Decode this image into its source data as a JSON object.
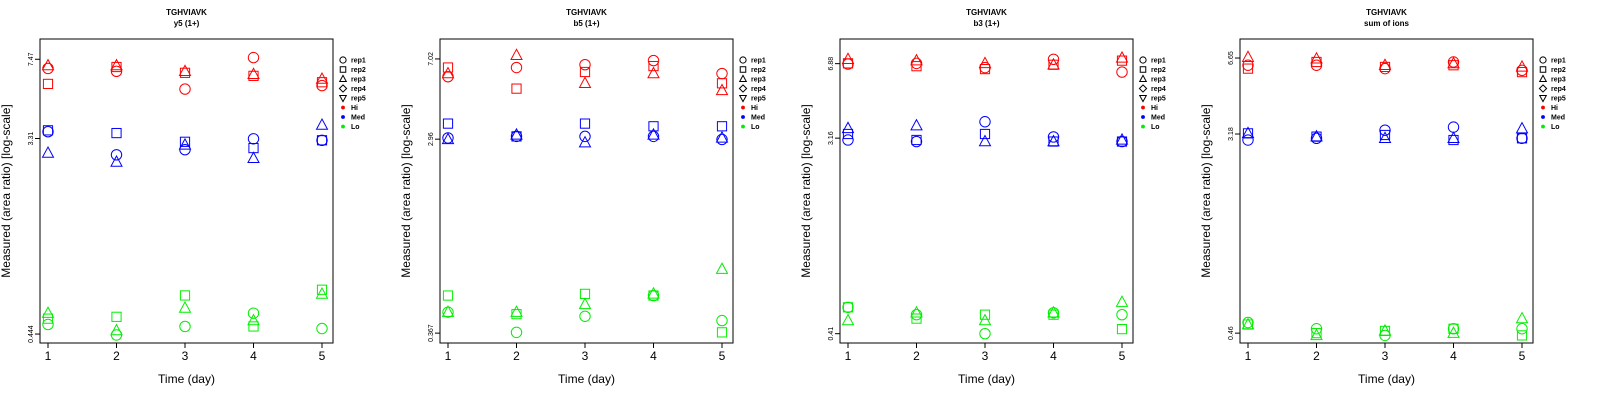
{
  "chart_data": [
    {
      "type": "scatter",
      "title": "TGHVIAVK",
      "subtitle": "y5 (1+)",
      "xlabel": "Time (day)",
      "ylabel": "Measured (area ratio) [log-scale]",
      "x_ticks": [
        "1",
        "2",
        "3",
        "4",
        "5"
      ],
      "y_ticks": [
        {
          "value": 0.444,
          "label": "0.444"
        },
        {
          "value": 3.31,
          "label": "3.31"
        },
        {
          "value": 7.47,
          "label": "7.47"
        }
      ],
      "ylim": [
        0.405,
        9.2
      ],
      "log_y": true,
      "legend_placement": "right",
      "legend": [
        {
          "label": "rep1",
          "shape": "circle"
        },
        {
          "label": "rep2",
          "shape": "square"
        },
        {
          "label": "rep3",
          "shape": "triangle"
        },
        {
          "label": "rep4",
          "shape": "diamond"
        },
        {
          "label": "rep5",
          "shape": "triangle-down"
        },
        {
          "label": "Hi",
          "level": "Hi"
        },
        {
          "label": "Med",
          "level": "Med"
        },
        {
          "label": "Lo",
          "level": "Lo"
        }
      ],
      "colors": {
        "Hi": "#ff0000",
        "Med": "#0000ff",
        "Lo": "#00ee00"
      },
      "series": [
        {
          "level": "Hi",
          "rep": "rep1",
          "x": [
            1,
            2,
            3,
            4,
            5
          ],
          "y": [
            6.8,
            6.6,
            5.5,
            7.6,
            5.7
          ]
        },
        {
          "level": "Hi",
          "rep": "rep2",
          "x": [
            1,
            2,
            3,
            4,
            5
          ],
          "y": [
            5.8,
            6.9,
            6.5,
            6.3,
            5.9
          ]
        },
        {
          "level": "Hi",
          "rep": "rep3",
          "x": [
            1,
            2,
            3,
            4,
            5
          ],
          "y": [
            7.0,
            7.0,
            6.6,
            6.4,
            6.1
          ]
        },
        {
          "level": "Med",
          "rep": "rep1",
          "x": [
            1,
            2,
            3,
            4,
            5
          ],
          "y": [
            3.55,
            2.8,
            2.95,
            3.3,
            3.25
          ]
        },
        {
          "level": "Med",
          "rep": "rep2",
          "x": [
            1,
            2,
            3,
            4,
            5
          ],
          "y": [
            3.6,
            3.5,
            3.2,
            3.0,
            3.25
          ]
        },
        {
          "level": "Med",
          "rep": "rep3",
          "x": [
            1,
            2,
            3,
            4,
            5
          ],
          "y": [
            2.85,
            2.6,
            3.1,
            2.7,
            3.8
          ]
        },
        {
          "level": "Lo",
          "rep": "rep1",
          "x": [
            1,
            2,
            3,
            4,
            5
          ],
          "y": [
            0.49,
            0.44,
            0.48,
            0.55,
            0.47
          ]
        },
        {
          "level": "Lo",
          "rep": "rep2",
          "x": [
            1,
            2,
            3,
            4,
            5
          ],
          "y": [
            0.52,
            0.53,
            0.66,
            0.48,
            0.7
          ]
        },
        {
          "level": "Lo",
          "rep": "rep3",
          "x": [
            1,
            2,
            3,
            4,
            5
          ],
          "y": [
            0.55,
            0.46,
            0.58,
            0.51,
            0.67
          ]
        }
      ]
    },
    {
      "type": "scatter",
      "title": "TGHVIAVK",
      "subtitle": "b5 (1+)",
      "xlabel": "Time (day)",
      "ylabel": "Measured (area ratio) [log-scale]",
      "x_ticks": [
        "1",
        "2",
        "3",
        "4",
        "5"
      ],
      "y_ticks": [
        {
          "value": 0.367,
          "label": "0.367"
        },
        {
          "value": 2.96,
          "label": "2.96"
        },
        {
          "value": 7.02,
          "label": "7.02"
        }
      ],
      "ylim": [
        0.33,
        8.7
      ],
      "log_y": true,
      "legend_placement": "right",
      "legend": [
        {
          "label": "rep1",
          "shape": "circle"
        },
        {
          "label": "rep2",
          "shape": "square"
        },
        {
          "label": "rep3",
          "shape": "triangle"
        },
        {
          "label": "rep4",
          "shape": "diamond"
        },
        {
          "label": "rep5",
          "shape": "triangle-down"
        },
        {
          "label": "Hi",
          "level": "Hi"
        },
        {
          "label": "Med",
          "level": "Med"
        },
        {
          "label": "Lo",
          "level": "Lo"
        }
      ],
      "colors": {
        "Hi": "#ff0000",
        "Med": "#0000ff",
        "Lo": "#00ee00"
      },
      "series": [
        {
          "level": "Hi",
          "rep": "rep1",
          "x": [
            1,
            2,
            3,
            4,
            5
          ],
          "y": [
            5.8,
            6.4,
            6.6,
            6.9,
            6.0
          ]
        },
        {
          "level": "Hi",
          "rep": "rep2",
          "x": [
            1,
            2,
            3,
            4,
            5
          ],
          "y": [
            6.4,
            5.1,
            6.1,
            6.5,
            5.4
          ]
        },
        {
          "level": "Hi",
          "rep": "rep3",
          "x": [
            1,
            2,
            3,
            4,
            5
          ],
          "y": [
            6.0,
            7.3,
            5.4,
            6.0,
            5.0
          ]
        },
        {
          "level": "Med",
          "rep": "rep1",
          "x": [
            1,
            2,
            3,
            4,
            5
          ],
          "y": [
            3.0,
            3.05,
            3.05,
            3.05,
            2.95
          ]
        },
        {
          "level": "Med",
          "rep": "rep2",
          "x": [
            1,
            2,
            3,
            4,
            5
          ],
          "y": [
            3.5,
            3.05,
            3.5,
            3.4,
            3.4
          ]
        },
        {
          "level": "Med",
          "rep": "rep3",
          "x": [
            1,
            2,
            3,
            4,
            5
          ],
          "y": [
            2.95,
            3.1,
            2.85,
            3.1,
            3.0
          ]
        },
        {
          "level": "Lo",
          "rep": "rep1",
          "x": [
            1,
            2,
            3,
            4,
            5
          ],
          "y": [
            0.46,
            0.37,
            0.44,
            0.55,
            0.42
          ]
        },
        {
          "level": "Lo",
          "rep": "rep2",
          "x": [
            1,
            2,
            3,
            4,
            5
          ],
          "y": [
            0.55,
            0.45,
            0.56,
            0.55,
            0.37
          ]
        },
        {
          "level": "Lo",
          "rep": "rep3",
          "x": [
            1,
            2,
            3,
            4,
            5
          ],
          "y": [
            0.46,
            0.46,
            0.5,
            0.56,
            0.73
          ]
        }
      ]
    },
    {
      "type": "scatter",
      "title": "TGHVIAVK",
      "subtitle": "b3 (1+)",
      "xlabel": "Time (day)",
      "ylabel": "Measured (area ratio) [log-scale]",
      "x_ticks": [
        "1",
        "2",
        "3",
        "4",
        "5"
      ],
      "y_ticks": [
        {
          "value": 0.41,
          "label": "0.41"
        },
        {
          "value": 3.16,
          "label": "3.16"
        },
        {
          "value": 6.88,
          "label": "6.88"
        }
      ],
      "ylim": [
        0.372,
        8.9
      ],
      "log_y": true,
      "legend_placement": "right",
      "legend": [
        {
          "label": "rep1",
          "shape": "circle"
        },
        {
          "label": "rep2",
          "shape": "square"
        },
        {
          "label": "rep3",
          "shape": "triangle"
        },
        {
          "label": "rep4",
          "shape": "diamond"
        },
        {
          "label": "rep5",
          "shape": "triangle-down"
        },
        {
          "label": "Hi",
          "level": "Hi"
        },
        {
          "label": "Med",
          "level": "Med"
        },
        {
          "label": "Lo",
          "level": "Lo"
        }
      ],
      "colors": {
        "Hi": "#ff0000",
        "Med": "#0000ff",
        "Lo": "#00ee00"
      },
      "series": [
        {
          "level": "Hi",
          "rep": "rep1",
          "x": [
            1,
            2,
            3,
            4,
            5
          ],
          "y": [
            6.85,
            6.9,
            6.6,
            7.2,
            6.3
          ]
        },
        {
          "level": "Hi",
          "rep": "rep2",
          "x": [
            1,
            2,
            3,
            4,
            5
          ],
          "y": [
            6.9,
            6.7,
            6.5,
            6.8,
            7.1
          ]
        },
        {
          "level": "Hi",
          "rep": "rep3",
          "x": [
            1,
            2,
            3,
            4,
            5
          ],
          "y": [
            7.2,
            7.1,
            6.9,
            6.8,
            7.3
          ]
        },
        {
          "level": "Med",
          "rep": "rep1",
          "x": [
            1,
            2,
            3,
            4,
            5
          ],
          "y": [
            3.1,
            3.05,
            3.75,
            3.2,
            3.05
          ]
        },
        {
          "level": "Med",
          "rep": "rep2",
          "x": [
            1,
            2,
            3,
            4,
            5
          ],
          "y": [
            3.3,
            3.1,
            3.3,
            3.05,
            3.05
          ]
        },
        {
          "level": "Med",
          "rep": "rep3",
          "x": [
            1,
            2,
            3,
            4,
            5
          ],
          "y": [
            3.5,
            3.6,
            3.05,
            3.05,
            3.1
          ]
        },
        {
          "level": "Lo",
          "rep": "rep1",
          "x": [
            1,
            2,
            3,
            4,
            5
          ],
          "y": [
            0.54,
            0.5,
            0.41,
            0.51,
            0.5
          ]
        },
        {
          "level": "Lo",
          "rep": "rep2",
          "x": [
            1,
            2,
            3,
            4,
            5
          ],
          "y": [
            0.54,
            0.48,
            0.5,
            0.5,
            0.43
          ]
        },
        {
          "level": "Lo",
          "rep": "rep3",
          "x": [
            1,
            2,
            3,
            4,
            5
          ],
          "y": [
            0.47,
            0.51,
            0.47,
            0.51,
            0.57
          ]
        }
      ]
    },
    {
      "type": "scatter",
      "title": "TGHVIAVK",
      "subtitle": "sum of ions",
      "xlabel": "Time (day)",
      "ylabel": "Measured (area ratio) [log-scale]",
      "x_ticks": [
        "1",
        "2",
        "3",
        "4",
        "5"
      ],
      "y_ticks": [
        {
          "value": 0.46,
          "label": "0.46"
        },
        {
          "value": 3.18,
          "label": "3.18"
        },
        {
          "value": 6.65,
          "label": "6.65"
        }
      ],
      "ylim": [
        0.418,
        8.0
      ],
      "log_y": true,
      "legend_placement": "right",
      "legend": [
        {
          "label": "rep1",
          "shape": "circle"
        },
        {
          "label": "rep2",
          "shape": "square"
        },
        {
          "label": "rep3",
          "shape": "triangle"
        },
        {
          "label": "rep4",
          "shape": "diamond"
        },
        {
          "label": "rep5",
          "shape": "triangle-down"
        },
        {
          "label": "Hi",
          "level": "Hi"
        },
        {
          "label": "Med",
          "level": "Med"
        },
        {
          "label": "Lo",
          "level": "Lo"
        }
      ],
      "colors": {
        "Hi": "#ff0000",
        "Med": "#0000ff",
        "Lo": "#00ee00"
      },
      "series": [
        {
          "level": "Hi",
          "rep": "rep1",
          "x": [
            1,
            2,
            3,
            4,
            5
          ],
          "y": [
            6.2,
            6.2,
            6.0,
            6.4,
            5.9
          ]
        },
        {
          "level": "Hi",
          "rep": "rep2",
          "x": [
            1,
            2,
            3,
            4,
            5
          ],
          "y": [
            6.0,
            6.4,
            6.1,
            6.2,
            5.8
          ]
        },
        {
          "level": "Hi",
          "rep": "rep3",
          "x": [
            1,
            2,
            3,
            4,
            5
          ],
          "y": [
            6.7,
            6.6,
            6.2,
            6.3,
            6.1
          ]
        },
        {
          "level": "Med",
          "rep": "rep1",
          "x": [
            1,
            2,
            3,
            4,
            5
          ],
          "y": [
            3.0,
            3.05,
            3.3,
            3.4,
            3.05
          ]
        },
        {
          "level": "Med",
          "rep": "rep2",
          "x": [
            1,
            2,
            3,
            4,
            5
          ],
          "y": [
            3.2,
            3.1,
            3.15,
            3.0,
            3.05
          ]
        },
        {
          "level": "Med",
          "rep": "rep3",
          "x": [
            1,
            2,
            3,
            4,
            5
          ],
          "y": [
            3.2,
            3.1,
            3.05,
            3.05,
            3.35
          ]
        },
        {
          "level": "Lo",
          "rep": "rep1",
          "x": [
            1,
            2,
            3,
            4,
            5
          ],
          "y": [
            0.51,
            0.48,
            0.45,
            0.48,
            0.48
          ]
        },
        {
          "level": "Lo",
          "rep": "rep2",
          "x": [
            1,
            2,
            3,
            4,
            5
          ],
          "y": [
            0.5,
            0.46,
            0.47,
            0.48,
            0.45
          ]
        },
        {
          "level": "Lo",
          "rep": "rep3",
          "x": [
            1,
            2,
            3,
            4,
            5
          ],
          "y": [
            0.5,
            0.45,
            0.47,
            0.46,
            0.53
          ]
        }
      ]
    }
  ]
}
